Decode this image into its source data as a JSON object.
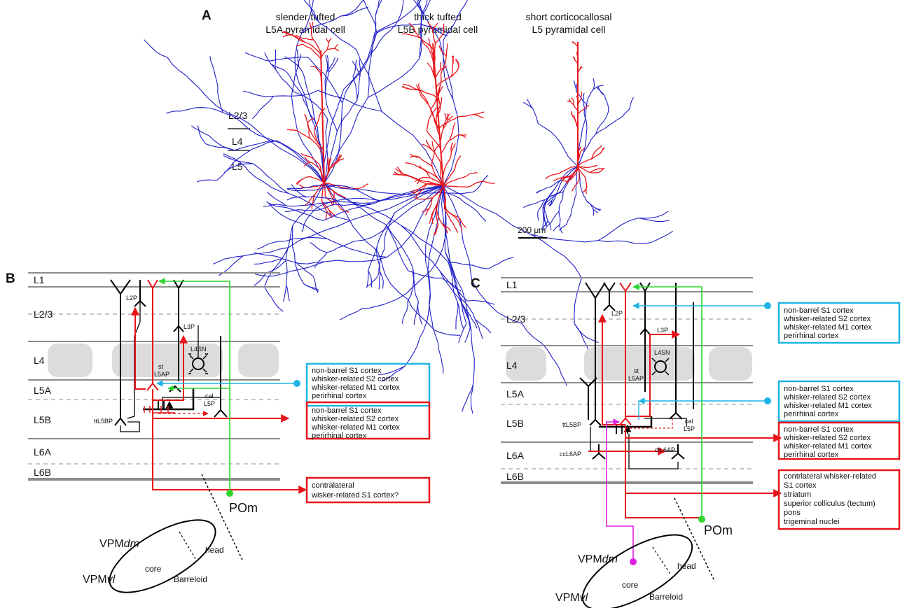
{
  "colors": {
    "apical": "#e8141a",
    "axon": "#1e1ec8",
    "cyan": "#1fb4e6",
    "green": "#2dd62d",
    "magenta": "#e020e0",
    "red": "#e8141a",
    "grid": "#8c8c8c",
    "barrel": "#dcdcdc",
    "black": "#000000"
  },
  "panelA": {
    "letter": "A",
    "cells": [
      {
        "line1": "slender tufted",
        "line2": "L5A pyramidal cell"
      },
      {
        "line1": "thick tufted",
        "line2": "L5B pyramidal cell"
      },
      {
        "line1": "short corticocallosal",
        "line2": "L5 pyramidal cell"
      }
    ],
    "layers": [
      "L2/3",
      "L4",
      "L5"
    ],
    "scalebar": "200 μm"
  },
  "panelB": {
    "letter": "B",
    "layers": [
      "L1",
      "L2/3",
      "L4",
      "L5A",
      "L5B",
      "L6A",
      "L6B"
    ],
    "cells": {
      "l2p": "L2P",
      "l3p": "L3P",
      "l4sn": "L4SN",
      "st1": "st",
      "st2": "L5AP",
      "cal1": "cal",
      "cal2": "L5P",
      "tt": "ttL5BP"
    },
    "cyanBox": [
      "non-barrel S1 cortex",
      "whisker-related S2 cortex",
      "whisker-related M1 cortex",
      "perirhinal cortex"
    ],
    "redBox": [
      "non-barrel S1 cortex",
      "whisker-related S2 cortex",
      "whisker-related M1 cortex",
      "perirhinal cortex"
    ],
    "contraBox": [
      "contralateral",
      "wisker-related S1 cortex?"
    ],
    "pom": "POm",
    "vpmdm": "VPM",
    "vpmdm_it": "dm",
    "vpmvl": "VPM",
    "vpmvl_it": "vl",
    "core": "core",
    "head": "head",
    "barreloid": "Barreloid"
  },
  "panelC": {
    "letter": "C",
    "layers": [
      "L1",
      "L2/3",
      "L4",
      "L5A",
      "L5B",
      "L6A",
      "L6B"
    ],
    "cells": {
      "l2p": "L2P",
      "l3p": "L3P",
      "l4sn": "L4SN",
      "st1": "st",
      "st2": "L5AP",
      "cal1": "cal",
      "cal2": "L5P",
      "tt": "ttL5BP",
      "cc": "ccL6AP",
      "ct": "ctL6AP"
    },
    "cyanTopBox": [
      "non-barrel S1 cortex",
      "whisker-related S2 cortex",
      "whisker-related M1 cortex",
      "perirhinal cortex"
    ],
    "cyanBox": [
      "non-barrel S1 cortex",
      "whisker-related S2 cortex",
      "whisker-related M1 cortex",
      "perirhinal cortex"
    ],
    "redBox": [
      "non-barrel S1 cortex",
      "whisker-related S2 cortex",
      "whisker-related M1 cortex",
      "perirhinal cortex"
    ],
    "subBox": [
      "contrlateral whisker-related",
      "S1 cortex",
      "striatum",
      "superior colliculus (tectum)",
      "pons",
      "trigeminal nuclei"
    ],
    "pom": "POm",
    "vpmdm": "VPM",
    "vpmdm_it": "dm",
    "vpmvl": "VPM",
    "vpmvl_it": "vl",
    "core": "core",
    "head": "head",
    "barreloid": "Barreloid"
  }
}
